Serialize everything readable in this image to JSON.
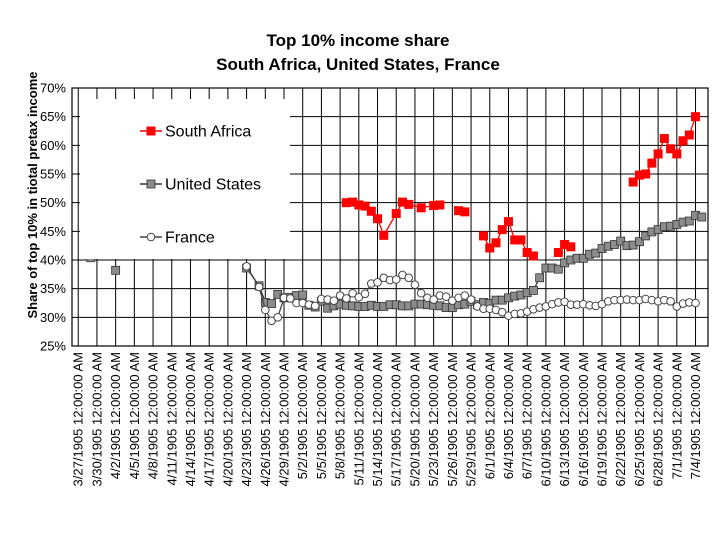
{
  "chart_data": {
    "type": "line",
    "title": "Top 10% income share",
    "subtitle": "South Africa, United States, France",
    "ylabel": "Share of top 10% in tiotal pretax income",
    "xlabel": "",
    "ylim": [
      25,
      70
    ],
    "y_ticks": [
      "25%",
      "30%",
      "35%",
      "40%",
      "45%",
      "50%",
      "55%",
      "60%",
      "65%",
      "70%"
    ],
    "grid": true,
    "legend_position": "top-left",
    "x_tick_labels": [
      "3/27/1905 12:00:00 AM",
      "3/30/1905 12:00:00 AM",
      "4/2/1905 12:00:00 AM",
      "4/5/1905 12:00:00 AM",
      "4/8/1905 12:00:00 AM",
      "4/11/1905 12:00:00 AM",
      "4/14/1905 12:00:00 AM",
      "4/17/1905 12:00:00 AM",
      "4/20/1905 12:00:00 AM",
      "4/23/1905 12:00:00 AM",
      "4/26/1905 12:00:00 AM",
      "4/29/1905 12:00:00 AM",
      "5/2/1905 12:00:00 AM",
      "5/5/1905 12:00:00 AM",
      "5/8/1905 12:00:00 AM",
      "5/11/1905 12:00:00 AM",
      "5/14/1905 12:00:00 AM",
      "5/17/1905 12:00:00 AM",
      "5/20/1905 12:00:00 AM",
      "5/23/1905 12:00:00 AM",
      "5/26/1905 12:00:00 AM",
      "5/29/1905 12:00:00 AM",
      "6/1/1905 12:00:00 AM",
      "6/4/1905 12:00:00 AM",
      "6/7/1905 12:00:00 AM",
      "6/10/1905 12:00:00 AM",
      "6/13/1905 12:00:00 AM",
      "6/16/1905 12:00:00 AM",
      "6/19/1905 12:00:00 AM",
      "6/22/1905 12:00:00 AM",
      "6/25/1905 12:00:00 AM",
      "6/28/1905 12:00:00 AM",
      "7/1/1905 12:00:00 AM",
      "7/4/1905 12:00:00 AM"
    ],
    "x_range": [
      "1905-03-26",
      "1905-07-06"
    ],
    "series": [
      {
        "name": "South Africa",
        "color": "#ff0000",
        "marker": "square-filled",
        "points": [
          [
            "1905-05-09",
            50.0
          ],
          [
            "1905-05-10",
            50.1
          ],
          [
            "1905-05-11",
            49.6
          ],
          [
            "1905-05-12",
            49.4
          ],
          [
            "1905-05-13",
            48.5
          ],
          [
            "1905-05-14",
            47.2
          ],
          [
            "1905-05-15",
            44.3
          ],
          [
            "1905-05-17",
            48.1
          ],
          [
            "1905-05-18",
            50.1
          ],
          [
            "1905-05-19",
            49.7
          ],
          [
            "1905-05-21",
            49.1
          ],
          [
            "1905-05-23",
            49.5
          ],
          [
            "1905-05-24",
            49.6
          ],
          [
            "1905-05-27",
            48.6
          ],
          [
            "1905-05-28",
            48.4
          ],
          [
            "1905-05-31",
            44.2
          ],
          [
            "1905-06-01",
            42.1
          ],
          [
            "1905-06-02",
            43.0
          ],
          [
            "1905-06-03",
            45.3
          ],
          [
            "1905-06-04",
            46.7
          ],
          [
            "1905-06-05",
            43.5
          ],
          [
            "1905-06-06",
            43.5
          ],
          [
            "1905-06-07",
            41.3
          ],
          [
            "1905-06-08",
            40.7
          ],
          [
            "1905-06-12",
            41.3
          ],
          [
            "1905-06-13",
            42.7
          ],
          [
            "1905-06-14",
            42.3
          ],
          [
            "1905-06-24",
            53.6
          ],
          [
            "1905-06-25",
            54.8
          ],
          [
            "1905-06-26",
            55.0
          ],
          [
            "1905-06-27",
            56.9
          ],
          [
            "1905-06-28",
            58.5
          ],
          [
            "1905-06-29",
            61.2
          ],
          [
            "1905-06-30",
            59.4
          ],
          [
            "1905-07-01",
            58.5
          ],
          [
            "1905-07-02",
            60.8
          ],
          [
            "1905-07-03",
            61.8
          ],
          [
            "1905-07-04",
            65.0
          ]
        ]
      },
      {
        "name": "United States",
        "color": "#333333",
        "marker": "square-gray",
        "points": [
          [
            "1905-03-29",
            40.4
          ],
          [
            "1905-04-02",
            38.2
          ],
          [
            "1905-04-23",
            38.6
          ],
          [
            "1905-04-25",
            35.5
          ],
          [
            "1905-04-26",
            32.6
          ],
          [
            "1905-04-27",
            32.4
          ],
          [
            "1905-04-28",
            34.0
          ],
          [
            "1905-04-29",
            33.4
          ],
          [
            "1905-04-30",
            33.5
          ],
          [
            "1905-05-01",
            33.8
          ],
          [
            "1905-05-02",
            33.9
          ],
          [
            "1905-05-03",
            32.1
          ],
          [
            "1905-05-04",
            31.8
          ],
          [
            "1905-05-05",
            32.8
          ],
          [
            "1905-05-06",
            31.6
          ],
          [
            "1905-05-07",
            32.0
          ],
          [
            "1905-05-08",
            32.3
          ],
          [
            "1905-05-09",
            32.1
          ],
          [
            "1905-05-10",
            32.0
          ],
          [
            "1905-05-11",
            31.9
          ],
          [
            "1905-05-12",
            31.9
          ],
          [
            "1905-05-13",
            32.1
          ],
          [
            "1905-05-14",
            31.9
          ],
          [
            "1905-05-15",
            31.9
          ],
          [
            "1905-05-16",
            32.2
          ],
          [
            "1905-05-17",
            32.2
          ],
          [
            "1905-05-18",
            32.0
          ],
          [
            "1905-05-19",
            32.0
          ],
          [
            "1905-05-20",
            32.3
          ],
          [
            "1905-05-21",
            32.3
          ],
          [
            "1905-05-22",
            32.2
          ],
          [
            "1905-05-23",
            32.1
          ],
          [
            "1905-05-24",
            32.0
          ],
          [
            "1905-05-25",
            31.7
          ],
          [
            "1905-05-26",
            31.7
          ],
          [
            "1905-05-27",
            32.2
          ],
          [
            "1905-05-28",
            32.3
          ],
          [
            "1905-05-29",
            32.8
          ],
          [
            "1905-05-30",
            32.2
          ],
          [
            "1905-05-31",
            32.6
          ],
          [
            "1905-06-01",
            32.4
          ],
          [
            "1905-06-02",
            33.0
          ],
          [
            "1905-06-03",
            33.0
          ],
          [
            "1905-06-04",
            33.4
          ],
          [
            "1905-06-05",
            33.7
          ],
          [
            "1905-06-06",
            33.9
          ],
          [
            "1905-06-07",
            34.3
          ],
          [
            "1905-06-08",
            34.7
          ],
          [
            "1905-06-09",
            36.9
          ],
          [
            "1905-06-10",
            38.6
          ],
          [
            "1905-06-11",
            38.6
          ],
          [
            "1905-06-12",
            38.4
          ],
          [
            "1905-06-13",
            39.5
          ],
          [
            "1905-06-14",
            40.0
          ],
          [
            "1905-06-15",
            40.3
          ],
          [
            "1905-06-16",
            40.3
          ],
          [
            "1905-06-17",
            41.0
          ],
          [
            "1905-06-18",
            41.2
          ],
          [
            "1905-06-19",
            42.0
          ],
          [
            "1905-06-20",
            42.4
          ],
          [
            "1905-06-21",
            42.7
          ],
          [
            "1905-06-22",
            43.3
          ],
          [
            "1905-06-23",
            42.5
          ],
          [
            "1905-06-24",
            42.6
          ],
          [
            "1905-06-25",
            43.2
          ],
          [
            "1905-06-26",
            44.2
          ],
          [
            "1905-06-27",
            44.9
          ],
          [
            "1905-06-28",
            45.3
          ],
          [
            "1905-06-29",
            45.8
          ],
          [
            "1905-06-30",
            45.9
          ],
          [
            "1905-07-01",
            46.2
          ],
          [
            "1905-07-02",
            46.6
          ],
          [
            "1905-07-03",
            46.8
          ],
          [
            "1905-07-04",
            47.8
          ],
          [
            "1905-07-05",
            47.5
          ]
        ]
      },
      {
        "name": "France",
        "color": "#444444",
        "marker": "circle-open",
        "points": [
          [
            "1905-04-23",
            38.9
          ],
          [
            "1905-04-25",
            35.3
          ],
          [
            "1905-04-26",
            31.3
          ],
          [
            "1905-04-27",
            29.4
          ],
          [
            "1905-04-28",
            30.0
          ],
          [
            "1905-04-29",
            33.4
          ],
          [
            "1905-04-30",
            33.3
          ],
          [
            "1905-05-01",
            32.5
          ],
          [
            "1905-05-02",
            32.5
          ],
          [
            "1905-05-03",
            32.2
          ],
          [
            "1905-05-04",
            32.0
          ],
          [
            "1905-05-05",
            33.2
          ],
          [
            "1905-05-06",
            33.1
          ],
          [
            "1905-05-07",
            32.9
          ],
          [
            "1905-05-08",
            33.8
          ],
          [
            "1905-05-09",
            33.3
          ],
          [
            "1905-05-10",
            34.2
          ],
          [
            "1905-05-11",
            33.5
          ],
          [
            "1905-05-12",
            34.1
          ],
          [
            "1905-05-13",
            35.9
          ],
          [
            "1905-05-14",
            36.1
          ],
          [
            "1905-05-15",
            36.9
          ],
          [
            "1905-05-16",
            36.5
          ],
          [
            "1905-05-17",
            36.6
          ],
          [
            "1905-05-18",
            37.4
          ],
          [
            "1905-05-19",
            36.9
          ],
          [
            "1905-05-20",
            35.7
          ],
          [
            "1905-05-21",
            34.2
          ],
          [
            "1905-05-22",
            33.4
          ],
          [
            "1905-05-23",
            33.1
          ],
          [
            "1905-05-24",
            33.8
          ],
          [
            "1905-05-25",
            33.6
          ],
          [
            "1905-05-26",
            32.9
          ],
          [
            "1905-05-27",
            33.4
          ],
          [
            "1905-05-28",
            33.8
          ],
          [
            "1905-05-29",
            33.1
          ],
          [
            "1905-05-30",
            31.9
          ],
          [
            "1905-05-31",
            31.5
          ],
          [
            "1905-06-01",
            31.5
          ],
          [
            "1905-06-02",
            31.3
          ],
          [
            "1905-06-03",
            30.9
          ],
          [
            "1905-06-04",
            30.3
          ],
          [
            "1905-06-05",
            30.6
          ],
          [
            "1905-06-06",
            30.7
          ],
          [
            "1905-06-07",
            31.0
          ],
          [
            "1905-06-08",
            31.4
          ],
          [
            "1905-06-09",
            31.7
          ],
          [
            "1905-06-10",
            31.9
          ],
          [
            "1905-06-11",
            32.3
          ],
          [
            "1905-06-12",
            32.6
          ],
          [
            "1905-06-13",
            32.7
          ],
          [
            "1905-06-14",
            32.2
          ],
          [
            "1905-06-15",
            32.2
          ],
          [
            "1905-06-16",
            32.3
          ],
          [
            "1905-06-17",
            32.1
          ],
          [
            "1905-06-18",
            32.0
          ],
          [
            "1905-06-19",
            32.3
          ],
          [
            "1905-06-20",
            32.8
          ],
          [
            "1905-06-21",
            33.0
          ],
          [
            "1905-06-22",
            33.0
          ],
          [
            "1905-06-23",
            33.1
          ],
          [
            "1905-06-24",
            33.0
          ],
          [
            "1905-06-25",
            33.0
          ],
          [
            "1905-06-26",
            33.2
          ],
          [
            "1905-06-27",
            33.0
          ],
          [
            "1905-06-28",
            32.8
          ],
          [
            "1905-06-29",
            33.0
          ],
          [
            "1905-06-30",
            32.8
          ],
          [
            "1905-07-01",
            31.9
          ],
          [
            "1905-07-02",
            32.4
          ],
          [
            "1905-07-03",
            32.6
          ],
          [
            "1905-07-04",
            32.5
          ]
        ]
      }
    ]
  }
}
